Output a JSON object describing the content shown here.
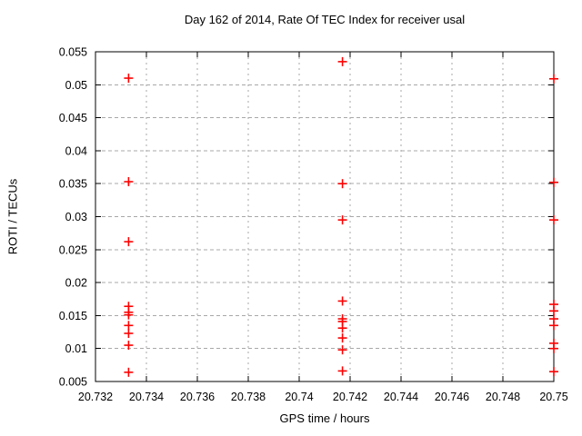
{
  "chart_data": {
    "type": "scatter",
    "title": "Day 162 of 2014, Rate Of TEC Index for receiver usal",
    "xlabel": "GPS time / hours",
    "ylabel": "ROTI / TECUs",
    "xlim": [
      20.732,
      20.75
    ],
    "ylim": [
      0.005,
      0.055
    ],
    "xtick_labels": [
      "20.732",
      "20.734",
      "20.736",
      "20.738",
      "20.74",
      "20.742",
      "20.744",
      "20.746",
      "20.748",
      "20.75"
    ],
    "xticks": [
      20.732,
      20.734,
      20.736,
      20.738,
      20.74,
      20.742,
      20.744,
      20.746,
      20.748,
      20.75
    ],
    "ytick_labels": [
      "0.005",
      "0.01",
      "0.015",
      "0.02",
      "0.025",
      "0.03",
      "0.035",
      "0.04",
      "0.045",
      "0.05",
      "0.055"
    ],
    "yticks": [
      0.005,
      0.01,
      0.015,
      0.02,
      0.025,
      0.03,
      0.035,
      0.04,
      0.045,
      0.05,
      0.055
    ],
    "grid": true,
    "legend": "none",
    "marker": {
      "shape": "plus",
      "name": "plus-marker",
      "color": "#ff0000",
      "size": 10,
      "stroke_width": 1.6
    },
    "colors": {
      "axis": "#000000",
      "grid": "#a8a8a8",
      "background": "#ffffff"
    },
    "series": [
      {
        "name": "ROTI",
        "points": [
          [
            20.7333,
            0.051
          ],
          [
            20.7333,
            0.0353
          ],
          [
            20.7333,
            0.0262
          ],
          [
            20.7333,
            0.0164
          ],
          [
            20.7333,
            0.0155
          ],
          [
            20.7333,
            0.0151
          ],
          [
            20.7333,
            0.0135
          ],
          [
            20.7333,
            0.0123
          ],
          [
            20.7333,
            0.0105
          ],
          [
            20.7333,
            0.0064
          ],
          [
            20.7417,
            0.0535
          ],
          [
            20.7417,
            0.035
          ],
          [
            20.7417,
            0.0295
          ],
          [
            20.7417,
            0.0172
          ],
          [
            20.7417,
            0.0145
          ],
          [
            20.7417,
            0.0141
          ],
          [
            20.7417,
            0.0131
          ],
          [
            20.7417,
            0.0116
          ],
          [
            20.7417,
            0.0098
          ],
          [
            20.7417,
            0.0066
          ],
          [
            20.75,
            0.0509
          ],
          [
            20.75,
            0.0352
          ],
          [
            20.75,
            0.0295
          ],
          [
            20.75,
            0.0167
          ],
          [
            20.75,
            0.0157
          ],
          [
            20.75,
            0.0145
          ],
          [
            20.75,
            0.0135
          ],
          [
            20.75,
            0.0108
          ],
          [
            20.75,
            0.01
          ],
          [
            20.75,
            0.0065
          ]
        ]
      }
    ]
  }
}
